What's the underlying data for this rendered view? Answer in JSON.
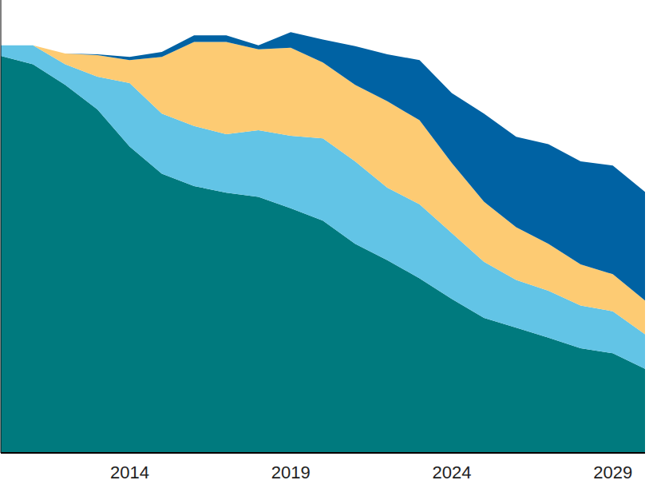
{
  "chart_data": {
    "type": "area",
    "stacked": true,
    "tick_labels": "x",
    "grid": false,
    "x": [
      2010,
      2011,
      2012,
      2013,
      2014,
      2015,
      2016,
      2017,
      2018,
      2019,
      2020,
      2021,
      2022,
      2023,
      2024,
      2025,
      2026,
      2027,
      2028,
      2029,
      2030
    ],
    "xlim": [
      2010,
      2030
    ],
    "xticks": [
      2014,
      2019,
      2024,
      2029
    ],
    "ylim": [
      0,
      110
    ],
    "yticks": [],
    "series": [
      {
        "color": "#007a7e",
        "values": [
          96.4,
          94.4,
          89.4,
          83.4,
          74.4,
          67.8,
          64.8,
          63.2,
          62.2,
          59.4,
          56.4,
          50.8,
          46.8,
          42.4,
          37.4,
          32.8,
          30.4,
          28,
          25.4,
          24.2,
          20.4
        ]
      },
      {
        "color": "#62c4e6",
        "values": [
          2.6,
          4.6,
          5,
          8,
          15.4,
          14.6,
          14.6,
          14.2,
          16.2,
          17.6,
          20,
          20,
          17.6,
          18,
          16,
          13.6,
          11.6,
          11.4,
          10.4,
          10.2,
          8.4
        ]
      },
      {
        "color": "#fdcb73",
        "values": [
          0,
          0,
          2.6,
          5.2,
          5.6,
          13.8,
          20.4,
          22.4,
          19.6,
          21.4,
          18.4,
          18.6,
          21,
          20.4,
          17,
          14.6,
          12.8,
          11.4,
          10,
          9,
          8.2
        ]
      },
      {
        "color": "#0062a3",
        "values": [
          0,
          0,
          0,
          0.2,
          0.8,
          1.2,
          1.6,
          1.6,
          1,
          3.8,
          5.6,
          9.4,
          11.4,
          14.6,
          17,
          21.4,
          22,
          24.2,
          25,
          26.4,
          26.4
        ]
      }
    ]
  }
}
